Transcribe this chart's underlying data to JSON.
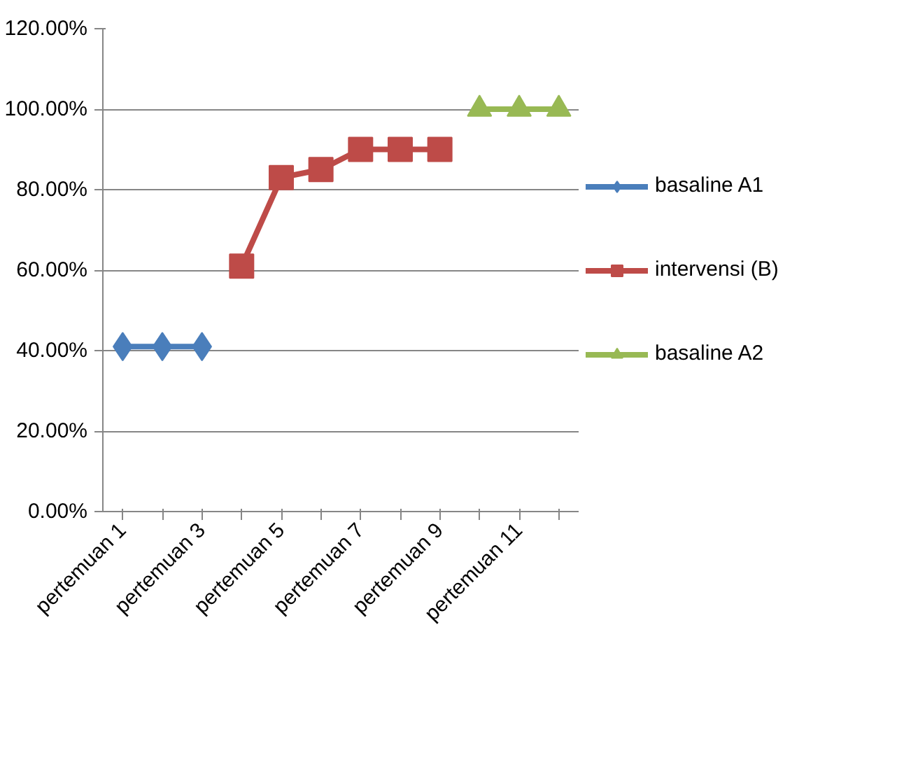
{
  "chart_data": {
    "type": "line",
    "categories": [
      "pertemuan 1",
      null,
      "pertemuan 3",
      null,
      "pertemuan 5",
      null,
      "pertemuan 7",
      null,
      "pertemuan 9",
      null,
      "pertemuan 11",
      null
    ],
    "series": [
      {
        "name": "basaline A1",
        "color": "#4a7ebb",
        "marker": "diamond",
        "values": [
          41,
          41,
          41,
          null,
          null,
          null,
          null,
          null,
          null,
          null,
          null,
          null
        ]
      },
      {
        "name": "intervensi (B)",
        "color": "#be4b48",
        "marker": "square",
        "values": [
          null,
          null,
          null,
          61,
          83,
          85,
          90,
          90,
          90,
          null,
          null,
          null
        ]
      },
      {
        "name": "basaline A2",
        "color": "#98b954",
        "marker": "triangle",
        "values": [
          null,
          null,
          null,
          null,
          null,
          null,
          null,
          null,
          null,
          100,
          100,
          100
        ]
      }
    ],
    "ylim": [
      0,
      120
    ],
    "yticks": [
      {
        "value": 0,
        "label": "0.00%"
      },
      {
        "value": 20,
        "label": "20.00%"
      },
      {
        "value": 40,
        "label": "40.00%"
      },
      {
        "value": 60,
        "label": "60.00%"
      },
      {
        "value": 80,
        "label": "80.00%"
      },
      {
        "value": 100,
        "label": "100.00%"
      },
      {
        "value": 120,
        "label": "120.00%"
      }
    ],
    "grid": "y",
    "legend": "right",
    "line_style": "solid"
  }
}
